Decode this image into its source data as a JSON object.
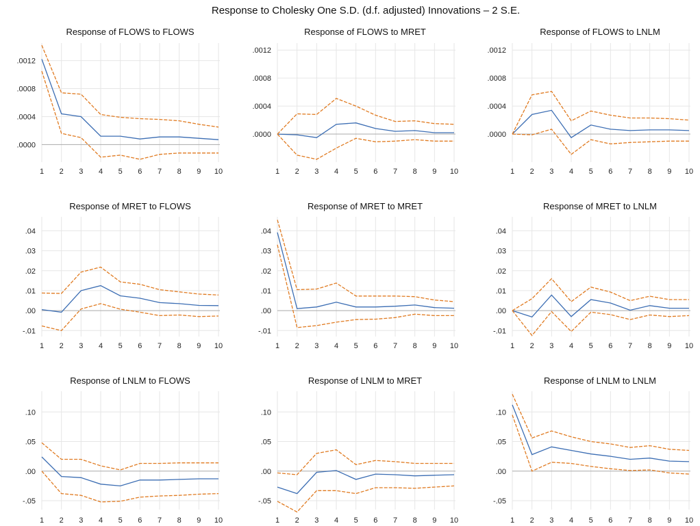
{
  "title": "Response to Cholesky One S.D. (d.f. adjusted) Innovations – 2 S.E.",
  "colors": {
    "response": "#3b6db3",
    "band": "#e07a20"
  },
  "chart_data": [
    {
      "type": "line",
      "title": "Response of FLOWS to FLOWS",
      "x": [
        1,
        2,
        3,
        4,
        5,
        6,
        7,
        8,
        9,
        10
      ],
      "ylim": [
        -0.00025,
        0.00145
      ],
      "yticks": [
        0,
        0.0004,
        0.0008,
        0.0012
      ],
      "ytick_labels": [
        ".0000",
        ".0004",
        ".0008",
        ".0012"
      ],
      "series": [
        {
          "role": "response",
          "values": [
            0.00122,
            0.00044,
            0.0004,
            0.00012,
            0.00012,
            8e-05,
            0.00011,
            0.00011,
            9e-05,
            7e-05
          ]
        },
        {
          "role": "upper",
          "values": [
            0.00142,
            0.00074,
            0.00072,
            0.00043,
            0.00039,
            0.00037,
            0.00036,
            0.00034,
            0.00029,
            0.00025
          ]
        },
        {
          "role": "lower",
          "values": [
            0.00105,
            0.00016,
            0.0001,
            -0.00018,
            -0.00015,
            -0.00021,
            -0.00014,
            -0.00012,
            -0.00012,
            -0.00012
          ]
        }
      ]
    },
    {
      "type": "line",
      "title": "Response of FLOWS to MRET",
      "x": [
        1,
        2,
        3,
        4,
        5,
        6,
        7,
        8,
        9,
        10
      ],
      "ylim": [
        -0.0004,
        0.0013
      ],
      "yticks": [
        0,
        0.0004,
        0.0008,
        0.0012
      ],
      "ytick_labels": [
        ".0000",
        ".0004",
        ".0008",
        ".0012"
      ],
      "series": [
        {
          "role": "response",
          "values": [
            0.0,
            -1e-05,
            -5e-05,
            0.00014,
            0.00016,
            8e-05,
            4e-05,
            5e-05,
            2e-05,
            2e-05
          ]
        },
        {
          "role": "upper",
          "values": [
            0.0,
            0.00029,
            0.00028,
            0.00051,
            0.0004,
            0.00027,
            0.00018,
            0.00019,
            0.00015,
            0.00014
          ]
        },
        {
          "role": "lower",
          "values": [
            0.0,
            -0.0003,
            -0.00036,
            -0.0002,
            -6e-05,
            -0.00011,
            -0.0001,
            -8e-05,
            -0.0001,
            -0.0001
          ]
        }
      ]
    },
    {
      "type": "line",
      "title": "Response of FLOWS to LNLM",
      "x": [
        1,
        2,
        3,
        4,
        5,
        6,
        7,
        8,
        9,
        10
      ],
      "ylim": [
        -0.0004,
        0.0013
      ],
      "yticks": [
        0,
        0.0004,
        0.0008,
        0.0012
      ],
      "ytick_labels": [
        ".0000",
        ".0004",
        ".0008",
        ".0012"
      ],
      "series": [
        {
          "role": "response",
          "values": [
            0.0,
            0.00028,
            0.00034,
            -5e-05,
            0.00013,
            7e-05,
            5e-05,
            6e-05,
            6e-05,
            5e-05
          ]
        },
        {
          "role": "upper",
          "values": [
            0.0,
            0.00056,
            0.00061,
            0.00019,
            0.00033,
            0.00027,
            0.00023,
            0.00023,
            0.00022,
            0.0002
          ]
        },
        {
          "role": "lower",
          "values": [
            0.0,
            -1e-05,
            7e-05,
            -0.00029,
            -8e-05,
            -0.00014,
            -0.00012,
            -0.00011,
            -0.0001,
            -0.0001
          ]
        }
      ]
    },
    {
      "type": "line",
      "title": "Response of MRET to FLOWS",
      "x": [
        1,
        2,
        3,
        4,
        5,
        6,
        7,
        8,
        9,
        10
      ],
      "ylim": [
        -0.013,
        0.047
      ],
      "yticks": [
        -0.01,
        0,
        0.01,
        0.02,
        0.03,
        0.04
      ],
      "ytick_labels": [
        "-.01",
        ".00",
        ".01",
        ".02",
        ".03",
        ".04"
      ],
      "series": [
        {
          "role": "response",
          "values": [
            0.0005,
            -0.0008,
            0.01,
            0.0125,
            0.0074,
            0.0062,
            0.004,
            0.0035,
            0.0026,
            0.0025
          ]
        },
        {
          "role": "upper",
          "values": [
            0.0088,
            0.0086,
            0.0193,
            0.0218,
            0.0144,
            0.0132,
            0.0105,
            0.0094,
            0.0083,
            0.0078
          ]
        },
        {
          "role": "lower",
          "values": [
            -0.0077,
            -0.01,
            0.0008,
            0.0035,
            0.0007,
            -0.0008,
            -0.0025,
            -0.0022,
            -0.003,
            -0.0027
          ]
        }
      ]
    },
    {
      "type": "line",
      "title": "Response of MRET to MRET",
      "x": [
        1,
        2,
        3,
        4,
        5,
        6,
        7,
        8,
        9,
        10
      ],
      "ylim": [
        -0.013,
        0.047
      ],
      "yticks": [
        -0.01,
        0,
        0.01,
        0.02,
        0.03,
        0.04
      ],
      "ytick_labels": [
        "-.01",
        ".00",
        ".01",
        ".02",
        ".03",
        ".04"
      ],
      "series": [
        {
          "role": "response",
          "values": [
            0.0392,
            0.001,
            0.0018,
            0.0042,
            0.0018,
            0.0018,
            0.0022,
            0.0028,
            0.0015,
            0.0012
          ]
        },
        {
          "role": "upper",
          "values": [
            0.0455,
            0.0105,
            0.0108,
            0.0138,
            0.0073,
            0.0073,
            0.0073,
            0.007,
            0.0053,
            0.0045
          ]
        },
        {
          "role": "lower",
          "values": [
            0.033,
            -0.0085,
            -0.0075,
            -0.0058,
            -0.0045,
            -0.0043,
            -0.0035,
            -0.0018,
            -0.0025,
            -0.0025
          ]
        }
      ]
    },
    {
      "type": "line",
      "title": "Response of MRET to LNLM",
      "x": [
        1,
        2,
        3,
        4,
        5,
        6,
        7,
        8,
        9,
        10
      ],
      "ylim": [
        -0.013,
        0.047
      ],
      "yticks": [
        -0.01,
        0,
        0.01,
        0.02,
        0.03,
        0.04
      ],
      "ytick_labels": [
        "-.01",
        ".00",
        ".01",
        ".02",
        ".03",
        ".04"
      ],
      "series": [
        {
          "role": "response",
          "values": [
            0.0,
            -0.0032,
            0.0078,
            -0.003,
            0.0055,
            0.0038,
            0.0002,
            0.0025,
            0.0012,
            0.0012
          ]
        },
        {
          "role": "upper",
          "values": [
            0.0,
            0.006,
            0.016,
            0.0045,
            0.0118,
            0.0093,
            0.005,
            0.0072,
            0.0055,
            0.0055
          ]
        },
        {
          "role": "lower",
          "values": [
            0.0,
            -0.0125,
            -0.0005,
            -0.0105,
            -0.0008,
            -0.002,
            -0.0045,
            -0.0022,
            -0.003,
            -0.0025
          ]
        }
      ]
    },
    {
      "type": "line",
      "title": "Response of LNLM to FLOWS",
      "x": [
        1,
        2,
        3,
        4,
        5,
        6,
        7,
        8,
        9,
        10
      ],
      "ylim": [
        -0.065,
        0.135
      ],
      "yticks": [
        -0.05,
        0,
        0.05,
        0.1
      ],
      "ytick_labels": [
        "-.05",
        ".00",
        ".05",
        ".10"
      ],
      "series": [
        {
          "role": "response",
          "values": [
            0.024,
            -0.009,
            -0.011,
            -0.022,
            -0.025,
            -0.015,
            -0.015,
            -0.014,
            -0.013,
            -0.013
          ]
        },
        {
          "role": "upper",
          "values": [
            0.048,
            0.02,
            0.02,
            0.009,
            0.002,
            0.013,
            0.013,
            0.014,
            0.014,
            0.014
          ]
        },
        {
          "role": "lower",
          "values": [
            0.0,
            -0.038,
            -0.041,
            -0.052,
            -0.051,
            -0.044,
            -0.042,
            -0.041,
            -0.039,
            -0.038
          ]
        }
      ]
    },
    {
      "type": "line",
      "title": "Response of LNLM to MRET",
      "x": [
        1,
        2,
        3,
        4,
        5,
        6,
        7,
        8,
        9,
        10
      ],
      "ylim": [
        -0.065,
        0.135
      ],
      "yticks": [
        -0.05,
        0,
        0.05,
        0.1
      ],
      "ytick_labels": [
        "-.05",
        ".00",
        ".05",
        ".10"
      ],
      "series": [
        {
          "role": "response",
          "values": [
            -0.027,
            -0.038,
            -0.002,
            0.001,
            -0.014,
            -0.005,
            -0.006,
            -0.008,
            -0.007,
            -0.006
          ]
        },
        {
          "role": "upper",
          "values": [
            -0.003,
            -0.006,
            0.03,
            0.036,
            0.011,
            0.018,
            0.016,
            0.013,
            0.013,
            0.013
          ]
        },
        {
          "role": "lower",
          "values": [
            -0.051,
            -0.069,
            -0.033,
            -0.033,
            -0.038,
            -0.028,
            -0.028,
            -0.029,
            -0.027,
            -0.025
          ]
        }
      ]
    },
    {
      "type": "line",
      "title": "Response of LNLM to LNLM",
      "x": [
        1,
        2,
        3,
        4,
        5,
        6,
        7,
        8,
        9,
        10
      ],
      "ylim": [
        -0.065,
        0.135
      ],
      "yticks": [
        -0.05,
        0,
        0.05,
        0.1
      ],
      "ytick_labels": [
        "-.05",
        ".00",
        ".05",
        ".10"
      ],
      "series": [
        {
          "role": "response",
          "values": [
            0.112,
            0.028,
            0.041,
            0.035,
            0.029,
            0.025,
            0.02,
            0.022,
            0.017,
            0.016
          ]
        },
        {
          "role": "upper",
          "values": [
            0.13,
            0.056,
            0.068,
            0.058,
            0.05,
            0.046,
            0.04,
            0.043,
            0.037,
            0.035
          ]
        },
        {
          "role": "lower",
          "values": [
            0.095,
            0.0,
            0.015,
            0.013,
            0.008,
            0.004,
            0.001,
            0.002,
            -0.003,
            -0.005
          ]
        }
      ]
    }
  ]
}
